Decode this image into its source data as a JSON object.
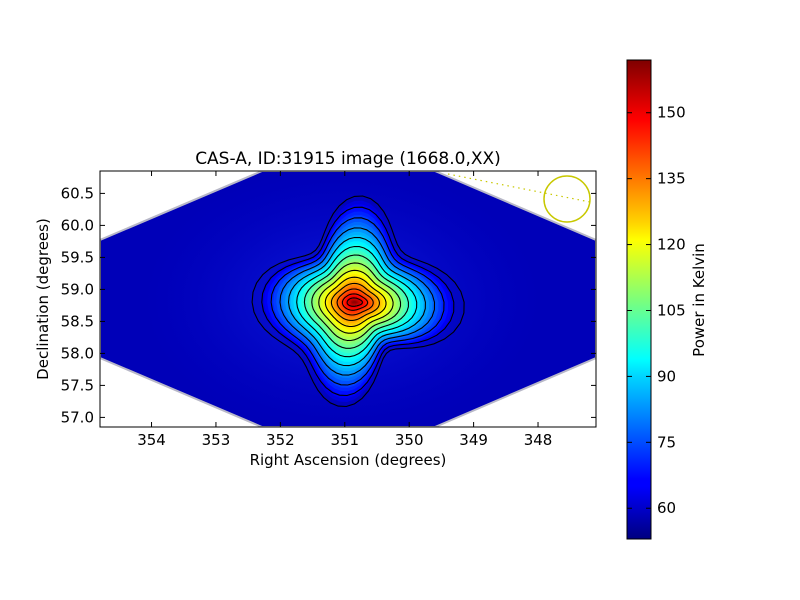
{
  "chart_data": {
    "type": "heatmap",
    "title": "CAS-A, ID:31915 image (1668.0,XX)",
    "xlabel": "Right Ascension (degrees)",
    "ylabel": "Declination (degrees)",
    "xlim": [
      354.8,
      347.1
    ],
    "ylim": [
      56.85,
      60.85
    ],
    "x_axis_reversed": true,
    "x_ticks": [
      354,
      353,
      352,
      351,
      350,
      349,
      348
    ],
    "x_tick_labels": [
      "354",
      "353",
      "352",
      "351",
      "350",
      "349",
      "348"
    ],
    "y_ticks": [
      57.0,
      57.5,
      58.0,
      58.5,
      59.0,
      59.5,
      60.0,
      60.5
    ],
    "y_tick_labels": [
      "57.0",
      "57.5",
      "58.0",
      "58.5",
      "59.0",
      "59.5",
      "60.0",
      "60.5"
    ],
    "colorbar": {
      "label": "Power in Kelvin",
      "range": [
        53,
        162
      ],
      "ticks": [
        60,
        75,
        90,
        105,
        120,
        135,
        150
      ],
      "tick_labels": [
        "60",
        "75",
        "90",
        "105",
        "120",
        "135",
        "150"
      ],
      "colormap": "jet"
    },
    "source": {
      "name": "CAS-A",
      "ra_peak": 350.85,
      "dec_peak": 58.8,
      "peak_power": 160,
      "background_power": 55
    },
    "contours": {
      "count": 14,
      "color": "#000000"
    },
    "beam_marker": {
      "ra": 347.45,
      "dec": 60.38,
      "color": "#c8c800"
    },
    "grid": false
  }
}
